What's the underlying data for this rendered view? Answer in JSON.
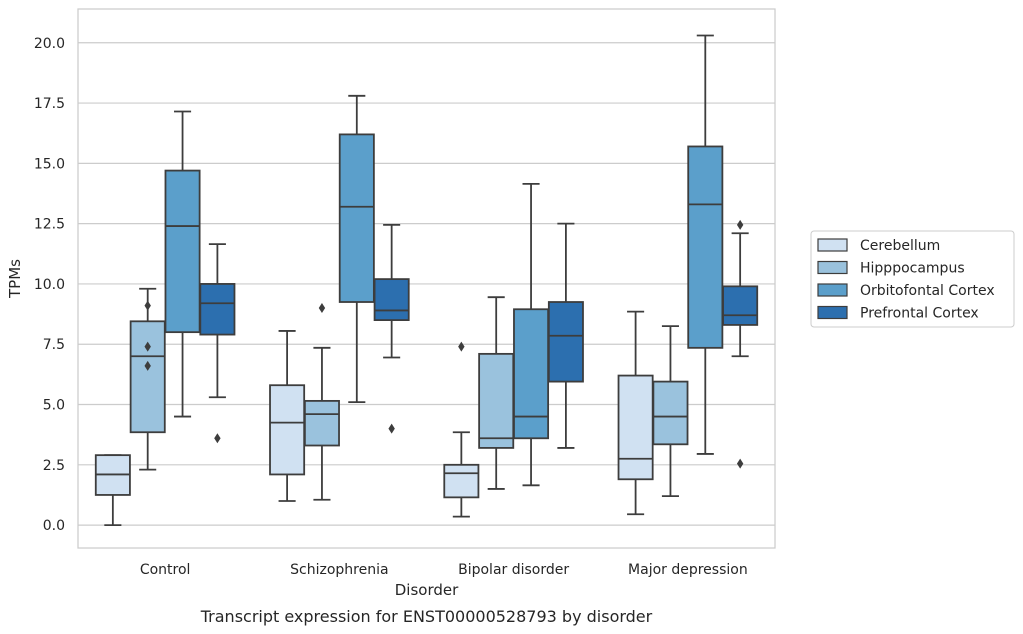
{
  "caption": "Transcript expression for ENST00000528793 by disorder",
  "chart_data": {
    "type": "boxplot",
    "xlabel": "Disorder",
    "ylabel": "TPMs",
    "ylim": [
      -0.95,
      21.4
    ],
    "yticks": [
      0.0,
      2.5,
      5.0,
      7.5,
      10.0,
      12.5,
      15.0,
      17.5,
      20.0
    ],
    "ytick_labels": [
      "0.0",
      "2.5",
      "5.0",
      "7.5",
      "10.0",
      "12.5",
      "15.0",
      "17.5",
      "20.0"
    ],
    "grid": true,
    "legend_position": "right",
    "categories": [
      "Control",
      "Schizophrenia",
      "Bipolar disorder",
      "Major depression"
    ],
    "series": [
      {
        "name": "Cerebellum",
        "color": "#d0e1f2",
        "boxes": [
          {
            "whislo": 0.0,
            "q1": 1.25,
            "med": 2.1,
            "q3": 2.9,
            "whishi": 2.9,
            "fliers": []
          },
          {
            "whislo": 1.0,
            "q1": 2.1,
            "med": 4.25,
            "q3": 5.8,
            "whishi": 8.05,
            "fliers": []
          },
          {
            "whislo": 0.35,
            "q1": 1.15,
            "med": 2.15,
            "q3": 2.5,
            "whishi": 3.85,
            "fliers": [
              7.4
            ]
          },
          {
            "whislo": 0.45,
            "q1": 1.9,
            "med": 2.75,
            "q3": 6.2,
            "whishi": 8.85,
            "fliers": []
          }
        ]
      },
      {
        "name": "Hipppocampus",
        "color": "#9ac2dd",
        "boxes": [
          {
            "whislo": 2.3,
            "q1": 3.85,
            "med": 7.0,
            "q3": 8.45,
            "whishi": 9.8,
            "fliers": [
              9.1,
              7.4,
              6.6
            ]
          },
          {
            "whislo": 1.05,
            "q1": 3.3,
            "med": 4.6,
            "q3": 5.15,
            "whishi": 7.35,
            "fliers": [
              9.0
            ]
          },
          {
            "whislo": 1.5,
            "q1": 3.2,
            "med": 3.6,
            "q3": 7.1,
            "whishi": 9.45,
            "fliers": []
          },
          {
            "whislo": 1.2,
            "q1": 3.35,
            "med": 4.5,
            "q3": 5.95,
            "whishi": 8.25,
            "fliers": []
          }
        ]
      },
      {
        "name": "Orbitofontal Cortex",
        "color": "#5b9fcb",
        "boxes": [
          {
            "whislo": 4.5,
            "q1": 8.0,
            "med": 12.4,
            "q3": 14.7,
            "whishi": 17.15,
            "fliers": []
          },
          {
            "whislo": 5.1,
            "q1": 9.25,
            "med": 13.2,
            "q3": 16.2,
            "whishi": 17.8,
            "fliers": []
          },
          {
            "whislo": 1.65,
            "q1": 3.6,
            "med": 4.5,
            "q3": 8.95,
            "whishi": 14.15,
            "fliers": []
          },
          {
            "whislo": 2.95,
            "q1": 7.35,
            "med": 13.3,
            "q3": 15.7,
            "whishi": 20.3,
            "fliers": []
          }
        ]
      },
      {
        "name": "Prefrontal Cortex",
        "color": "#2c6faf",
        "boxes": [
          {
            "whislo": 5.3,
            "q1": 7.9,
            "med": 9.2,
            "q3": 10.0,
            "whishi": 11.65,
            "fliers": [
              3.6
            ]
          },
          {
            "whislo": 6.95,
            "q1": 8.5,
            "med": 8.9,
            "q3": 10.2,
            "whishi": 12.45,
            "fliers": [
              4.0
            ]
          },
          {
            "whislo": 3.2,
            "q1": 5.95,
            "med": 7.85,
            "q3": 9.25,
            "whishi": 12.5,
            "fliers": []
          },
          {
            "whislo": 7.0,
            "q1": 8.3,
            "med": 8.7,
            "q3": 9.9,
            "whishi": 12.1,
            "fliers": [
              12.45,
              2.55
            ]
          }
        ]
      }
    ]
  }
}
